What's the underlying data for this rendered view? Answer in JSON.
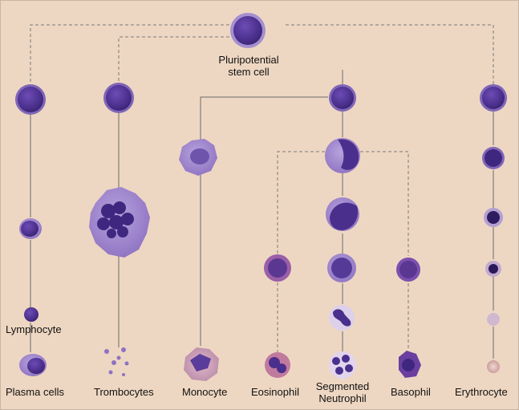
{
  "diagram": {
    "root_label_line1": "Pluripotential",
    "root_label_line2": "stem cell",
    "intermediate_label": "Lymphocyte",
    "final_labels": {
      "plasma": "Plasma cells",
      "thrombo": "Trombocytes",
      "mono": "Monocyte",
      "eos": "Eosinophil",
      "neutro_line1": "Segmented",
      "neutro_line2": "Neutrophil",
      "baso": "Basophil",
      "ery": "Erythrocyte"
    },
    "colors": {
      "background": "#eed7c2",
      "nucleus": "#4a2f8c",
      "cytoplasm": "#8e72c2",
      "connector": "#6b6b6b",
      "dashed_connector": "#7a7a7a",
      "erythrocyte_pale": "#d9b7b2"
    }
  }
}
